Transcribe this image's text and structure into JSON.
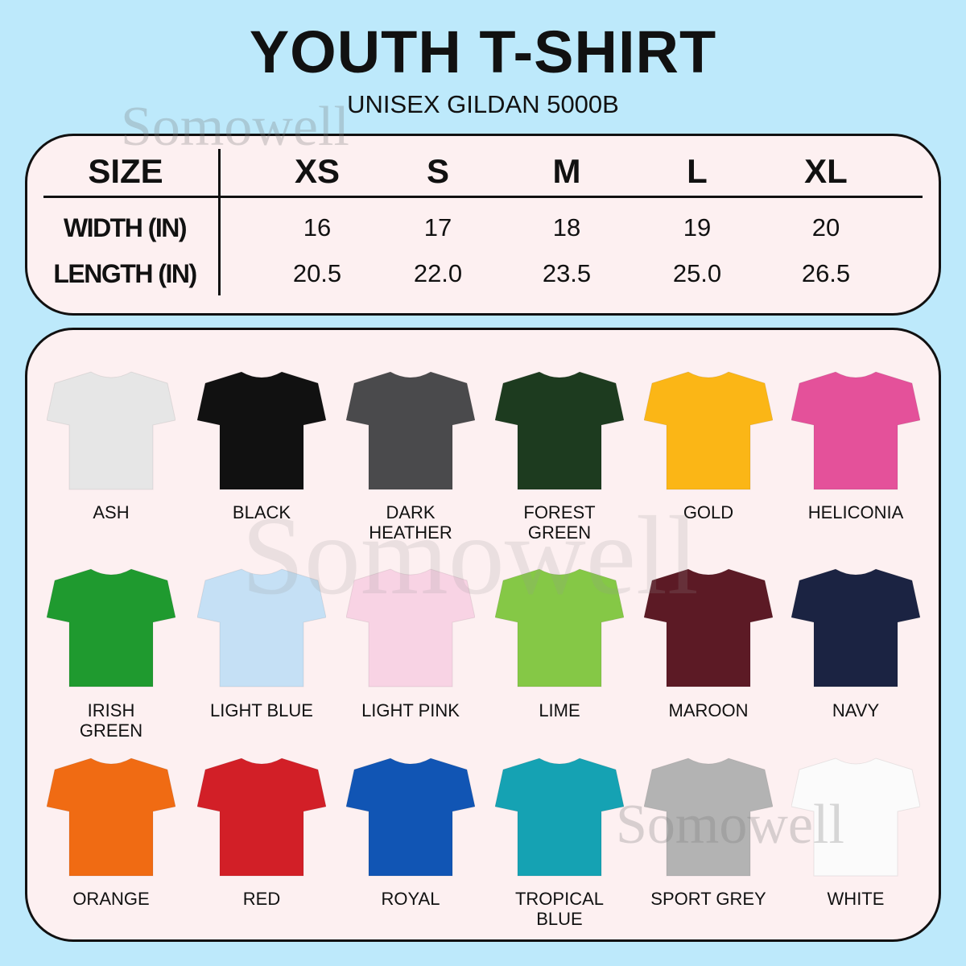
{
  "header": {
    "title": "YOUTH T-SHIRT",
    "subtitle": "UNISEX GILDAN 5000B"
  },
  "watermark": "Somowell",
  "size_table": {
    "header_label": "SIZE",
    "sizes": [
      "XS",
      "S",
      "M",
      "L",
      "XL"
    ],
    "rows": [
      {
        "label": "WIDTH (IN)",
        "values": [
          "16",
          "17",
          "18",
          "19",
          "20"
        ]
      },
      {
        "label": "LENGTH (IN)",
        "values": [
          "20.5",
          "22.0",
          "23.5",
          "25.0",
          "26.5"
        ]
      }
    ]
  },
  "colors": [
    {
      "name": "ASH",
      "hex": "#e6e6e6"
    },
    {
      "name": "BLACK",
      "hex": "#111111"
    },
    {
      "name": "DARK HEATHER",
      "hex": "#4a4a4c"
    },
    {
      "name": "FOREST GREEN",
      "hex": "#1d3b1f"
    },
    {
      "name": "GOLD",
      "hex": "#fbb616"
    },
    {
      "name": "HELICONIA",
      "hex": "#e4519a"
    },
    {
      "name": "IRISH GREEN",
      "hex": "#1f9a2f"
    },
    {
      "name": "LIGHT BLUE",
      "hex": "#c5e0f5"
    },
    {
      "name": "LIGHT PINK",
      "hex": "#f8d3e4"
    },
    {
      "name": "LIME",
      "hex": "#85c846"
    },
    {
      "name": "MAROON",
      "hex": "#5c1a25"
    },
    {
      "name": "NAVY",
      "hex": "#1b2342"
    },
    {
      "name": "ORANGE",
      "hex": "#f06b13"
    },
    {
      "name": "RED",
      "hex": "#d21f27"
    },
    {
      "name": "ROYAL",
      "hex": "#1155b4"
    },
    {
      "name": "TROPICAL BLUE",
      "hex": "#15a2b3"
    },
    {
      "name": "SPORT GREY",
      "hex": "#b3b3b3"
    },
    {
      "name": "WHITE",
      "hex": "#fbfbfb"
    }
  ]
}
